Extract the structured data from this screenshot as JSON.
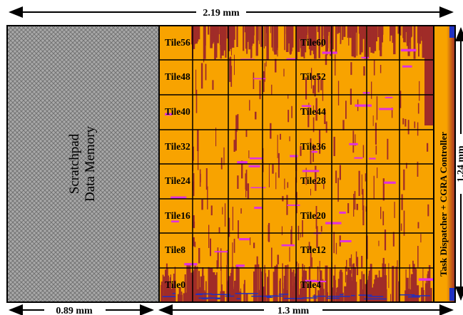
{
  "dimensions": {
    "total_width": "2.19 mm",
    "height": "1.24 mm",
    "memory_width": "0.89 mm",
    "array_width": "1.3 mm"
  },
  "memory": {
    "line1": "Scratchpad",
    "line2": "Data Memory"
  },
  "controller": {
    "label": "Task Dispatcher + CGRA Controller"
  },
  "tiles": [
    {
      "label": "Tile56"
    },
    {
      "label": "Tile60"
    },
    {
      "label": "Tile48"
    },
    {
      "label": "Tile52"
    },
    {
      "label": "Tile40"
    },
    {
      "label": "Tile44"
    },
    {
      "label": "Tile32"
    },
    {
      "label": "Tile36"
    },
    {
      "label": "Tile24"
    },
    {
      "label": "Tile28"
    },
    {
      "label": "Tile16"
    },
    {
      "label": "Tile20"
    },
    {
      "label": "Tile8"
    },
    {
      "label": "Tile12"
    },
    {
      "label": "Tile0"
    },
    {
      "label": "Tile4"
    }
  ],
  "colors": {
    "die_orange": "#f8a300",
    "logic_red": "#a02c28",
    "memory_gray": "#9a9a9a",
    "routing_magenta": "#e030e0",
    "routing_blue": "#2030c0"
  }
}
